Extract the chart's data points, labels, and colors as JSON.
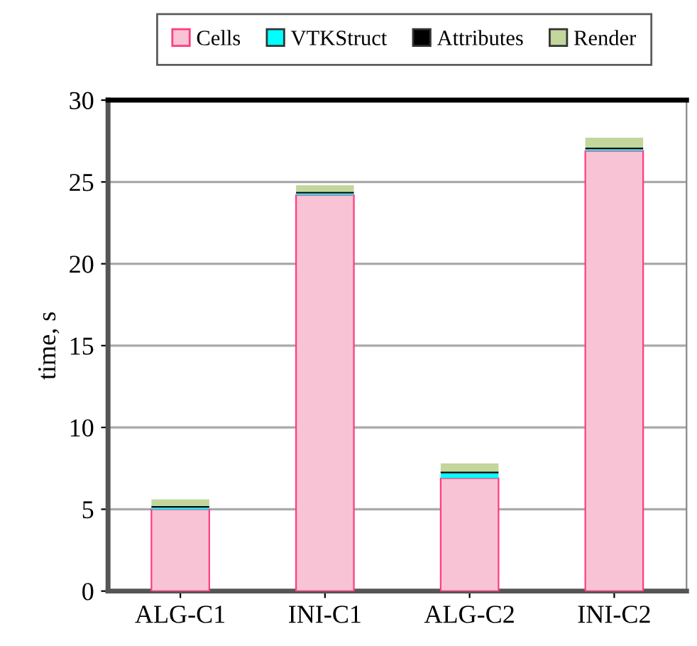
{
  "chart_data": {
    "type": "bar",
    "stacked": true,
    "ylabel": "time, s",
    "categories": [
      "ALG-C1",
      "INI-C1",
      "ALG-C2",
      "INI-C2"
    ],
    "series": [
      {
        "name": "Cells",
        "color": "#f9c3d6",
        "values": [
          5.0,
          24.2,
          6.9,
          26.9
        ]
      },
      {
        "name": "VTKStruct",
        "color": "#00ffff",
        "values": [
          0.1,
          0.1,
          0.3,
          0.1
        ]
      },
      {
        "name": "Attributes",
        "color": "#000000",
        "values": [
          0.1,
          0.1,
          0.1,
          0.1
        ]
      },
      {
        "name": "Render",
        "color": "#c3d69b",
        "values": [
          0.4,
          0.4,
          0.5,
          0.6
        ]
      }
    ],
    "ylim": [
      0,
      30
    ],
    "yticks": [
      0,
      5,
      10,
      15,
      20,
      25,
      30
    ],
    "grid": "y",
    "legend": "top"
  }
}
